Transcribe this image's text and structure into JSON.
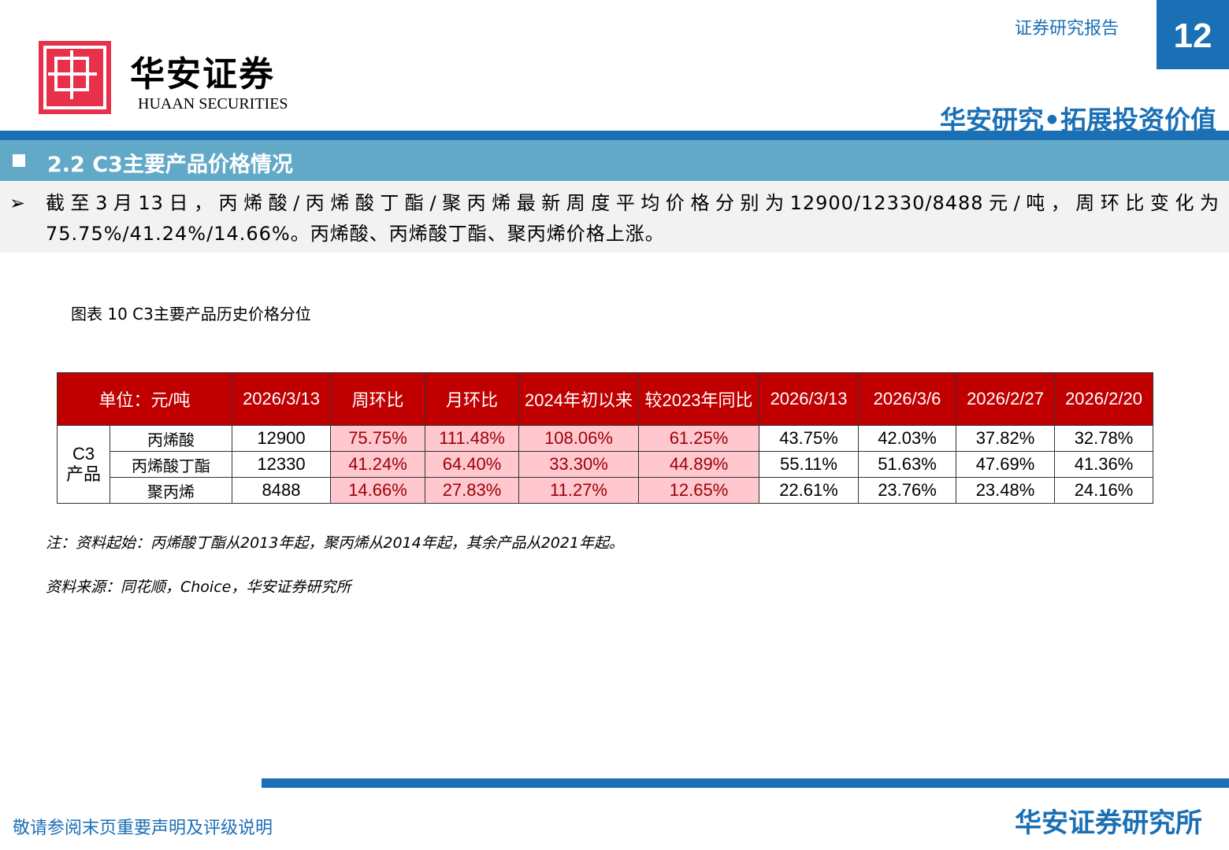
{
  "header": {
    "logo_cn": "华安证券",
    "logo_en": "HUAAN SECURITIES",
    "report_type": "证券研究报告",
    "page_number": "12",
    "slogan": "华安研究•拓展投资价值"
  },
  "section": {
    "title": "2.2 C3主要产品价格情况"
  },
  "summary": {
    "bullet": "➢",
    "text": "截至3月13日，丙烯酸/丙烯酸丁酯/聚丙烯最新周度平均价格分别为12900/12330/8488元/吨，周环比变化为75.75%/41.24%/14.66%。丙烯酸、丙烯酸丁酯、聚丙烯价格上涨。"
  },
  "figure": {
    "title": "图表 10 C3主要产品历史价格分位"
  },
  "table": {
    "headers": [
      "单位：元/吨",
      "2026/3/13",
      "周环比",
      "月环比",
      "2024年初以来",
      "较2023年同比",
      "2026/3/13",
      "2026/3/6",
      "2026/2/27",
      "2026/2/20"
    ],
    "group_label": "C3产品",
    "rows": [
      {
        "name": "丙烯酸",
        "cells": [
          "12900",
          "75.75%",
          "111.48%",
          "108.06%",
          "61.25%",
          "43.75%",
          "42.03%",
          "37.82%",
          "32.78%"
        ]
      },
      {
        "name": "丙烯酸丁酯",
        "cells": [
          "12330",
          "41.24%",
          "64.40%",
          "33.30%",
          "44.89%",
          "55.11%",
          "51.63%",
          "47.69%",
          "41.36%"
        ]
      },
      {
        "name": "聚丙烯",
        "cells": [
          "8488",
          "14.66%",
          "27.83%",
          "11.27%",
          "12.65%",
          "22.61%",
          "23.76%",
          "23.48%",
          "24.16%"
        ]
      }
    ]
  },
  "note": "注：资料起始：丙烯酸丁酯从2013年起，聚丙烯从2014年起，其余产品从2021年起。",
  "source": "资料来源：同花顺，Choice，华安证券研究所",
  "footer": {
    "disclaimer": "敬请参阅末页重要声明及评级说明",
    "brand": "华安证券研究所"
  },
  "colors": {
    "brand_blue": "#1a6fb5",
    "header_red": "#c00000",
    "highlight_pink": "#ffc7ce",
    "section_blue": "#62a9c8"
  }
}
